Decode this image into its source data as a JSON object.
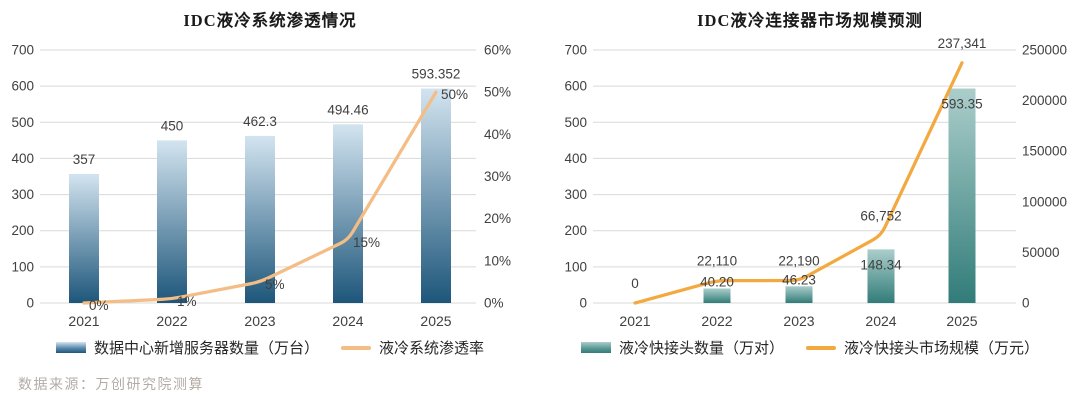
{
  "source_note": "数据来源：万创研究院测算",
  "chart_data": [
    {
      "type": "bar+line",
      "title": "IDC液冷系统渗透情况",
      "categories": [
        "2021",
        "2022",
        "2023",
        "2024",
        "2025"
      ],
      "series": [
        {
          "name": "数据中心新增服务器数量（万台）",
          "type": "bar",
          "axis": "left",
          "values": [
            357,
            450,
            462.3,
            494.46,
            593.352
          ],
          "labels": [
            "357",
            "450",
            "462.3",
            "494.46",
            "593.352"
          ]
        },
        {
          "name": "液冷系统渗透率",
          "type": "line",
          "axis": "right",
          "values": [
            0,
            1,
            5,
            15,
            50
          ],
          "labels": [
            "0%",
            "1%",
            "5%",
            "15%",
            "50%"
          ]
        }
      ],
      "left_axis": {
        "min": 0,
        "max": 700,
        "step": 100,
        "tick_labels": [
          "0",
          "100",
          "200",
          "300",
          "400",
          "500",
          "600",
          "700"
        ]
      },
      "right_axis": {
        "min": 0,
        "max": 60,
        "tick_labels": [
          "0%",
          "10%",
          "20%",
          "30%",
          "40%",
          "50%",
          "60%"
        ]
      },
      "grid": true,
      "legend_position": "bottom",
      "colors": {
        "bar_top": "#d3e4f0",
        "bar_bottom": "#1d567a",
        "line": "#f4bd85"
      }
    },
    {
      "type": "bar+line",
      "title": "IDC液冷连接器市场规模预测",
      "categories": [
        "2021",
        "2022",
        "2023",
        "2024",
        "2025"
      ],
      "series": [
        {
          "name": "液冷快接头数量（万对）",
          "type": "bar",
          "axis": "left",
          "values": [
            0,
            40.2,
            46.23,
            148.34,
            593.35
          ],
          "labels": [
            "0",
            "40.20",
            "46.23",
            "148.34",
            "593.35"
          ]
        },
        {
          "name": "液冷快接头市场规模（万元）",
          "type": "line",
          "axis": "right",
          "values": [
            0,
            22110,
            22190,
            66752,
            237341
          ],
          "labels": [
            "0",
            "22,110",
            "22,190",
            "66,752",
            "237,341"
          ]
        }
      ],
      "left_axis": {
        "min": 0,
        "max": 700,
        "step": 100,
        "tick_labels": [
          "0",
          "100",
          "200",
          "300",
          "400",
          "500",
          "600",
          "700"
        ]
      },
      "right_axis": {
        "min": 0,
        "max": 250000,
        "tick_labels": [
          "0",
          "50000",
          "100000",
          "150000",
          "200000",
          "250000"
        ]
      },
      "grid": true,
      "legend_position": "bottom",
      "colors": {
        "bar_top": "#abcecb",
        "bar_bottom": "#317c79",
        "line": "#f3a93f"
      }
    }
  ]
}
